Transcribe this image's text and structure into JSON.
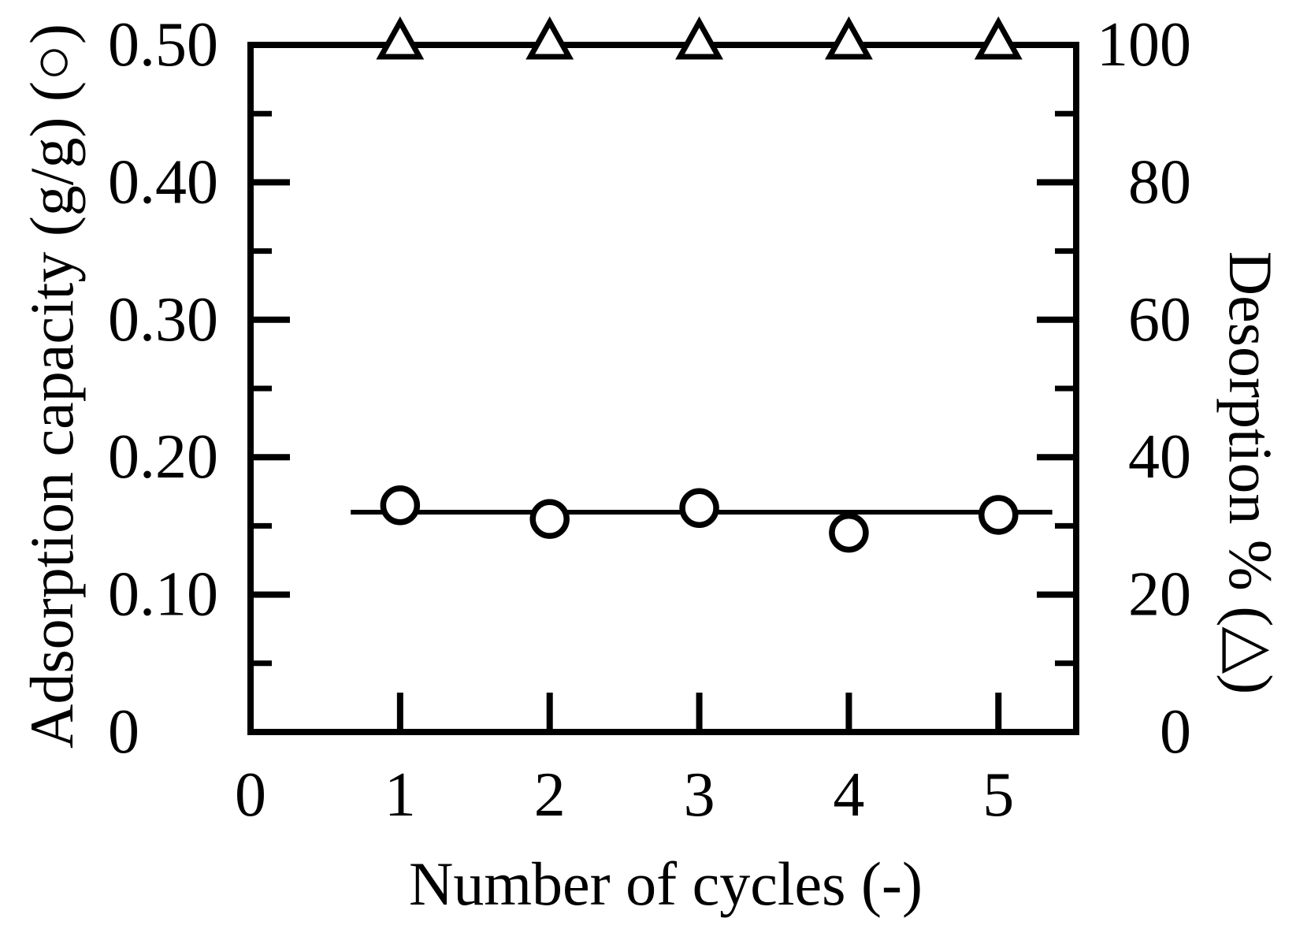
{
  "figure": {
    "background": "#ffffff",
    "ink": "#000000"
  },
  "chart_data": {
    "type": "scatter",
    "title": "",
    "grid": false,
    "legend": null,
    "x": [
      1,
      2,
      3,
      4,
      5
    ],
    "series": [
      {
        "name": "Adsorption capacity",
        "axis": "left",
        "marker": "circle",
        "marker_fill": "#ffffff",
        "values": [
          0.165,
          0.155,
          0.163,
          0.145,
          0.158
        ],
        "trend_line": {
          "x_start": 0.67,
          "x_end": 5.36,
          "value": 0.16
        }
      },
      {
        "name": "Desorption %",
        "axis": "right",
        "marker": "triangle",
        "marker_fill": "#ffffff",
        "values": [
          100,
          100,
          100,
          100,
          100
        ],
        "trend_line": {
          "x_start": 0.67,
          "x_end": 5.36,
          "value": 100
        }
      }
    ],
    "x_axis": {
      "title": "Number of cycles (-)",
      "range": [
        0,
        5.52
      ],
      "tick_values": [
        1,
        2,
        3,
        4,
        5
      ],
      "tick_label_values": [
        0,
        1,
        2,
        3,
        4,
        5
      ],
      "tick_labels": [
        "0",
        "1",
        "2",
        "3",
        "4",
        "5"
      ]
    },
    "left_axis": {
      "title": "Adsorption capacity (g/g) (○)",
      "range": [
        0,
        0.5
      ],
      "major_tick_values": [
        0.1,
        0.2,
        0.3,
        0.4,
        0.5
      ],
      "minor_tick_values": [
        0.05,
        0.15,
        0.25,
        0.35,
        0.45
      ],
      "tick_label_values": [
        0,
        0.1,
        0.2,
        0.3,
        0.4,
        0.5
      ],
      "tick_labels": [
        "0",
        "0.10",
        "0.20",
        "0.30",
        "0.40",
        "0.50"
      ]
    },
    "right_axis": {
      "title": "Desorption % (△)",
      "range": [
        0,
        100
      ],
      "major_tick_values": [
        20,
        40,
        60,
        80,
        100
      ],
      "minor_tick_values": [
        10,
        30,
        50,
        70,
        90
      ],
      "tick_label_values": [
        0,
        20,
        40,
        60,
        80,
        100
      ],
      "tick_labels": [
        "0",
        "20",
        "40",
        "60",
        "80",
        "100"
      ]
    }
  }
}
